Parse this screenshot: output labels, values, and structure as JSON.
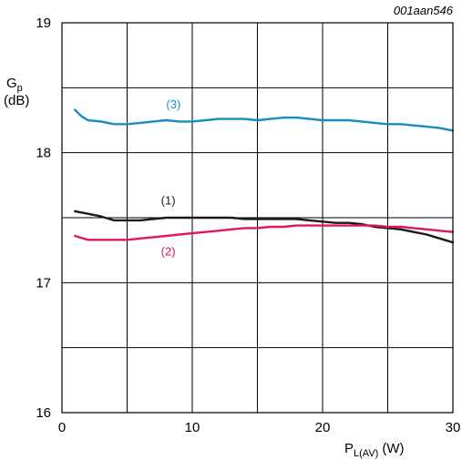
{
  "chart_data": {
    "type": "line",
    "document_id": "001aan546",
    "ylabel": {
      "main": "G",
      "sub": "p",
      "unit": "(dB)"
    },
    "xlabel": {
      "main": "P",
      "sub": "L(AV)",
      "unit": "(W)"
    },
    "xlim": [
      0,
      30
    ],
    "ylim": [
      16,
      19
    ],
    "x_ticks": [
      0,
      10,
      20,
      30
    ],
    "x_tick_labels": [
      "0",
      "10",
      "20",
      "30"
    ],
    "x_grid": [
      0,
      5,
      10,
      15,
      20,
      25,
      30
    ],
    "y_ticks": [
      16,
      17,
      18,
      19
    ],
    "y_tick_labels": [
      "16",
      "17",
      "18",
      "19"
    ],
    "y_grid": [
      16,
      16.5,
      17,
      17.5,
      18,
      18.5,
      19
    ],
    "grid": true,
    "series": [
      {
        "name": "(3)",
        "color": "#1a8ac4",
        "label_at": [
          8,
          18.34
        ],
        "x": [
          1,
          1.5,
          2,
          3,
          4,
          5,
          6,
          7,
          8,
          9,
          10,
          11,
          12,
          13,
          14,
          15,
          16,
          17,
          18,
          19,
          20,
          21,
          22,
          23,
          24,
          25,
          26,
          27,
          28,
          29,
          30
        ],
        "y": [
          18.33,
          18.28,
          18.25,
          18.24,
          18.22,
          18.22,
          18.23,
          18.24,
          18.25,
          18.24,
          18.24,
          18.25,
          18.26,
          18.26,
          18.26,
          18.25,
          18.26,
          18.27,
          18.27,
          18.26,
          18.25,
          18.25,
          18.25,
          18.24,
          18.23,
          18.22,
          18.22,
          18.21,
          18.2,
          18.19,
          18.17
        ]
      },
      {
        "name": "(1)",
        "color": "#1a1a1a",
        "label_at": [
          7.6,
          17.6
        ],
        "x": [
          1,
          2,
          3,
          4,
          5,
          6,
          7,
          8,
          9,
          10,
          11,
          12,
          13,
          14,
          15,
          16,
          17,
          18,
          19,
          20,
          21,
          22,
          23,
          24,
          25,
          26,
          27,
          28,
          29,
          30
        ],
        "y": [
          17.55,
          17.53,
          17.51,
          17.48,
          17.48,
          17.48,
          17.49,
          17.5,
          17.5,
          17.5,
          17.5,
          17.5,
          17.5,
          17.49,
          17.49,
          17.49,
          17.49,
          17.49,
          17.48,
          17.47,
          17.46,
          17.46,
          17.45,
          17.43,
          17.42,
          17.41,
          17.39,
          17.37,
          17.34,
          17.31
        ]
      },
      {
        "name": "(2)",
        "color": "#e0185a",
        "label_at": [
          7.6,
          17.21
        ],
        "x": [
          1,
          2,
          3,
          4,
          5,
          6,
          7,
          8,
          9,
          10,
          11,
          12,
          13,
          14,
          15,
          16,
          17,
          18,
          19,
          20,
          21,
          22,
          23,
          24,
          25,
          26,
          27,
          28,
          29,
          30
        ],
        "y": [
          17.36,
          17.33,
          17.33,
          17.33,
          17.33,
          17.34,
          17.35,
          17.36,
          17.37,
          17.38,
          17.39,
          17.4,
          17.41,
          17.42,
          17.42,
          17.43,
          17.43,
          17.44,
          17.44,
          17.44,
          17.44,
          17.44,
          17.44,
          17.44,
          17.43,
          17.43,
          17.42,
          17.41,
          17.4,
          17.39
        ]
      }
    ]
  }
}
